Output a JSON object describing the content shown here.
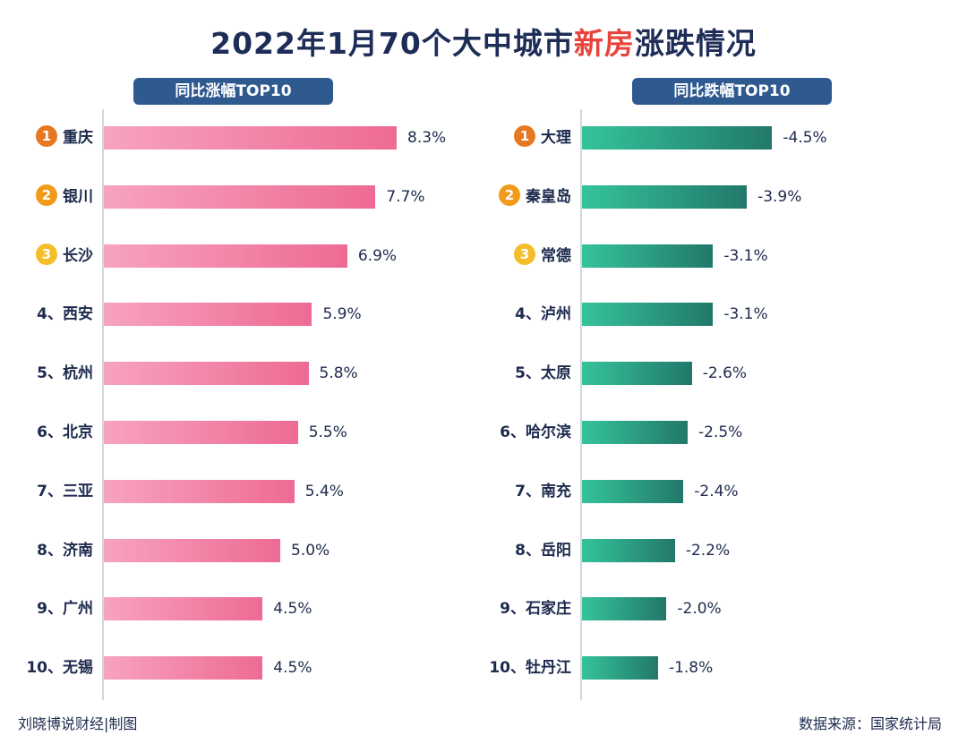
{
  "title_parts": {
    "pre": "2022年1月70个大中城市",
    "highlight": "新房",
    "post": "涨跌情况"
  },
  "colors": {
    "highlight": "#e8433c",
    "header_bg": "#2f5a90",
    "rank1": "#e87722",
    "rank2": "#f29a1a",
    "rank3": "#f4bd2a"
  },
  "footer": {
    "left": "刘晓博说财经|制图",
    "right": "数据来源：国家统计局"
  },
  "chart_data": [
    {
      "type": "bar",
      "orientation": "horizontal",
      "title": "同比涨幅TOP10",
      "categories": [
        "重庆",
        "银川",
        "长沙",
        "西安",
        "杭州",
        "北京",
        "三亚",
        "济南",
        "广州",
        "无锡"
      ],
      "rank_labels": [
        "1",
        "2",
        "3",
        "4、",
        "5、",
        "6、",
        "7、",
        "8、",
        "9、",
        "10、"
      ],
      "values": [
        8.3,
        7.7,
        6.9,
        5.9,
        5.8,
        5.5,
        5.4,
        5.0,
        4.5,
        4.5
      ],
      "value_labels": [
        "8.3%",
        "7.7%",
        "6.9%",
        "5.9%",
        "5.8%",
        "5.5%",
        "5.4%",
        "5.0%",
        "4.5%",
        "4.5%"
      ],
      "bar_color": "#f07aa0",
      "xlim": [
        0,
        10
      ]
    },
    {
      "type": "bar",
      "orientation": "horizontal",
      "title": "同比跌幅TOP10",
      "categories": [
        "大理",
        "秦皇岛",
        "常德",
        "泸州",
        "太原",
        "哈尔滨",
        "南充",
        "岳阳",
        "石家庄",
        "牡丹江"
      ],
      "rank_labels": [
        "1",
        "2",
        "3",
        "4、",
        "5、",
        "6、",
        "7、",
        "8、",
        "9、",
        "10、"
      ],
      "values": [
        -4.5,
        -3.9,
        -3.1,
        -3.1,
        -2.6,
        -2.5,
        -2.4,
        -2.2,
        -2.0,
        -1.8
      ],
      "value_labels": [
        "-4.5%",
        "-3.9%",
        "-3.1%",
        "-3.1%",
        "-2.6%",
        "-2.5%",
        "-2.4%",
        "-2.2%",
        "-2.0%",
        "-1.8%"
      ],
      "bar_color": "#2fa884",
      "xlim": [
        -5.3,
        0
      ]
    }
  ]
}
